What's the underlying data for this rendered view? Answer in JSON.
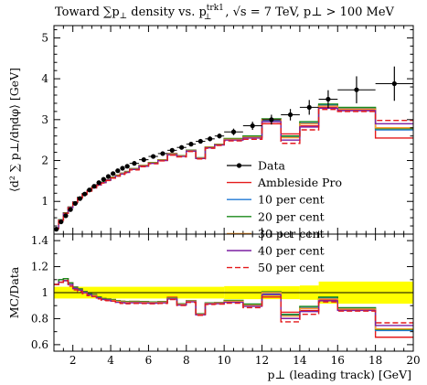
{
  "title": "Toward ∑p⊥ density vs. p⊥^trk1, √s = 7 TeV, p⊥ > 100 MeV",
  "title_parts": {
    "lead": "Toward ",
    "sum_pt": "∑p",
    "perp": "⊥",
    "mid": " density vs. ",
    "pt": "p",
    "sup": "trk1",
    "sub": "⊥",
    "tail": ", √s = 7 TeV, p⊥ > 100 MeV"
  },
  "chart_data": [
    {
      "type": "line",
      "panel": "main",
      "ylabel": "⟨d² ∑ p⊥/dηdφ⟩ [GeV]",
      "xlim": [
        1,
        20
      ],
      "ylim": [
        0.2,
        5.3
      ],
      "x_ticks": [
        2,
        4,
        6,
        8,
        10,
        12,
        14,
        16,
        18,
        20
      ],
      "y_ticks": [
        1,
        2,
        3,
        4,
        5
      ],
      "legend_position": "lower-right",
      "legend": [
        "Data",
        "Ambleside Pro",
        "10 per cent",
        "20 per cent",
        "30 per cent",
        "40 per cent",
        "50 per cent"
      ],
      "bin_edges": [
        1,
        1.25,
        1.5,
        1.75,
        2,
        2.25,
        2.5,
        2.75,
        3,
        3.25,
        3.5,
        3.75,
        4,
        4.25,
        4.5,
        4.75,
        5,
        5.5,
        6,
        6.5,
        7,
        7.5,
        8,
        8.5,
        9,
        9.5,
        10,
        11,
        12,
        13,
        14,
        15,
        16,
        18,
        20
      ],
      "data": {
        "name": "Data",
        "color": "#000000",
        "x": [
          1.125,
          1.375,
          1.625,
          1.875,
          2.125,
          2.375,
          2.625,
          2.875,
          3.125,
          3.375,
          3.625,
          3.875,
          4.125,
          4.375,
          4.625,
          4.875,
          5.25,
          5.75,
          6.25,
          6.75,
          7.25,
          7.75,
          8.25,
          8.75,
          9.25,
          9.75,
          10.5,
          11.5,
          12.5,
          13.5,
          14.5,
          15.5,
          17,
          19
        ],
        "y": [
          0.32,
          0.5,
          0.65,
          0.8,
          0.95,
          1.07,
          1.18,
          1.28,
          1.37,
          1.46,
          1.54,
          1.61,
          1.68,
          1.75,
          1.81,
          1.86,
          1.93,
          2.02,
          2.1,
          2.17,
          2.25,
          2.32,
          2.4,
          2.47,
          2.53,
          2.6,
          2.7,
          2.85,
          3.0,
          3.12,
          3.3,
          3.5,
          3.73,
          3.88
        ],
        "yerr": [
          0.02,
          0.02,
          0.02,
          0.02,
          0.02,
          0.02,
          0.02,
          0.02,
          0.02,
          0.02,
          0.02,
          0.02,
          0.03,
          0.03,
          0.03,
          0.03,
          0.03,
          0.03,
          0.03,
          0.04,
          0.04,
          0.04,
          0.05,
          0.05,
          0.06,
          0.06,
          0.08,
          0.1,
          0.12,
          0.14,
          0.18,
          0.22,
          0.33,
          0.42
        ]
      },
      "series": [
        {
          "name": "Ambleside Pro",
          "color": "#e41a1c",
          "dash": "",
          "y": [
            0.34,
            0.55,
            0.72,
            0.86,
            0.99,
            1.1,
            1.19,
            1.27,
            1.35,
            1.41,
            1.47,
            1.53,
            1.59,
            1.64,
            1.69,
            1.73,
            1.8,
            1.88,
            1.95,
            2.02,
            2.17,
            2.12,
            2.25,
            2.05,
            2.33,
            2.4,
            2.53,
            2.58,
            2.9,
            2.65,
            2.85,
            3.3,
            3.25,
            2.55
          ]
        },
        {
          "name": "10 per cent",
          "color": "#1f78d4",
          "dash": "",
          "y": [
            0.34,
            0.55,
            0.71,
            0.85,
            0.98,
            1.09,
            1.18,
            1.26,
            1.34,
            1.4,
            1.46,
            1.52,
            1.58,
            1.63,
            1.68,
            1.72,
            1.79,
            1.87,
            1.94,
            2.01,
            2.15,
            2.11,
            2.24,
            2.06,
            2.32,
            2.39,
            2.53,
            2.58,
            2.98,
            2.58,
            2.92,
            3.35,
            3.28,
            2.75
          ]
        },
        {
          "name": "20 per cent",
          "color": "#1b8a1b",
          "dash": "",
          "y": [
            0.34,
            0.55,
            0.72,
            0.86,
            0.99,
            1.1,
            1.19,
            1.27,
            1.35,
            1.41,
            1.47,
            1.53,
            1.59,
            1.64,
            1.69,
            1.73,
            1.8,
            1.88,
            1.95,
            2.02,
            2.16,
            2.12,
            2.25,
            2.07,
            2.33,
            2.4,
            2.54,
            2.6,
            3.02,
            2.6,
            2.95,
            3.38,
            3.3,
            2.78
          ]
        },
        {
          "name": "30 per cent",
          "color": "#ff9a2e",
          "dash": "",
          "y": [
            0.34,
            0.54,
            0.71,
            0.85,
            0.98,
            1.09,
            1.18,
            1.26,
            1.34,
            1.4,
            1.46,
            1.52,
            1.58,
            1.63,
            1.68,
            1.72,
            1.79,
            1.87,
            1.94,
            2.01,
            2.15,
            2.11,
            2.24,
            2.06,
            2.32,
            2.39,
            2.52,
            2.57,
            3.0,
            2.56,
            2.9,
            3.33,
            3.26,
            2.8
          ]
        },
        {
          "name": "40 per cent",
          "color": "#7b1fa2",
          "dash": "",
          "y": [
            0.34,
            0.54,
            0.71,
            0.85,
            0.98,
            1.09,
            1.18,
            1.26,
            1.33,
            1.4,
            1.46,
            1.52,
            1.57,
            1.62,
            1.67,
            1.71,
            1.78,
            1.86,
            1.93,
            2.0,
            2.14,
            2.1,
            2.23,
            2.05,
            2.31,
            2.38,
            2.5,
            2.55,
            2.95,
            2.5,
            2.82,
            3.28,
            3.22,
            2.9
          ]
        },
        {
          "name": "50 per cent",
          "color": "#e41a1c",
          "dash": "6,3",
          "y": [
            0.34,
            0.54,
            0.71,
            0.84,
            0.97,
            1.08,
            1.17,
            1.25,
            1.33,
            1.39,
            1.45,
            1.51,
            1.57,
            1.62,
            1.66,
            1.7,
            1.77,
            1.85,
            1.92,
            1.99,
            2.13,
            2.09,
            2.22,
            2.04,
            2.3,
            2.37,
            2.48,
            2.52,
            2.9,
            2.42,
            2.75,
            3.25,
            3.2,
            2.98
          ]
        }
      ]
    },
    {
      "type": "line",
      "panel": "ratio",
      "ylabel": "MC/Data",
      "xlabel": "p⊥ (leading track) [GeV]",
      "xlim": [
        1,
        20
      ],
      "ylim": [
        0.55,
        1.45
      ],
      "x_ticks": [
        2,
        4,
        6,
        8,
        10,
        12,
        14,
        16,
        18,
        20
      ],
      "y_ticks": [
        0.6,
        0.8,
        1,
        1.2,
        1.4
      ],
      "band": {
        "color": "#ffff00",
        "x_edges": [
          1,
          10,
          14,
          15,
          20
        ],
        "half_width": [
          0.045,
          0.05,
          0.055,
          0.085
        ]
      }
    }
  ]
}
